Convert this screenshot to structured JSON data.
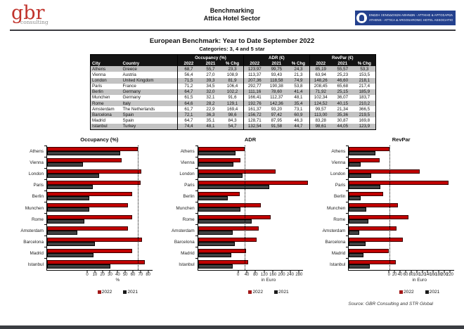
{
  "header": {
    "logo_text": "gbr",
    "logo_subtext": "consulting",
    "title_line1": "Benchmarking",
    "title_line2": "Attica Hotel Sector",
    "association_line1": "ΕΝΩΣΗ ΞΕΝΟΔΟΧΩΝ ΑΘΗΝΩΝ - ΑΤΤΙΚΗΣ & ΑΡΓΟΣΑΡΩΝΙΚΟΥ",
    "association_line2": "ATHENS - ATTICA & ARGOSARONIC HOTEL ASSOCIATION"
  },
  "report": {
    "title": "European Benchmark: Year to Date September 2022",
    "subtitle": "Categories: 3, 4 and 5 star"
  },
  "table": {
    "group_headers": [
      "Occupancy (%)",
      "ADR (€)",
      "RevPar (€)"
    ],
    "sub_headers": [
      "City",
      "Country",
      "2022",
      "2021",
      "% Chg",
      "2022",
      "2021",
      "% Chg",
      "2022",
      "2021",
      "% Chg"
    ],
    "rows": [
      [
        "Athens",
        "Greece",
        "68,7",
        "55,7",
        "23,3",
        "123,97",
        "99,75",
        "24,3",
        "85,19",
        "55,57",
        "53,3"
      ],
      [
        "Vienna",
        "Austria",
        "56,4",
        "27,0",
        "108,9",
        "113,37",
        "93,43",
        "21,3",
        "63,94",
        "25,23",
        "153,5"
      ],
      [
        "London",
        "United Kingdom",
        "71,5",
        "39,3",
        "81,9",
        "207,36",
        "118,58",
        "74,9",
        "148,26",
        "46,60",
        "218,1"
      ],
      [
        "Paris",
        "France",
        "71,2",
        "34,5",
        "106,4",
        "292,77",
        "190,38",
        "53,8",
        "208,45",
        "65,68",
        "217,4"
      ],
      [
        "Berlin",
        "Germany",
        "64,7",
        "32,0",
        "102,2",
        "111,16",
        "78,60",
        "41,4",
        "71,92",
        "25,15",
        "185,9"
      ],
      [
        "Munchen",
        "Germany",
        "61,5",
        "32,1",
        "91,6",
        "166,41",
        "112,37",
        "48,1",
        "102,34",
        "36,07",
        "183,7"
      ],
      [
        "Rome",
        "Italy",
        "64,6",
        "28,2",
        "129,1",
        "192,76",
        "142,36",
        "35,4",
        "124,52",
        "40,15",
        "210,2"
      ],
      [
        "Amsterdam",
        "The Netherlands",
        "61,7",
        "22,9",
        "169,4",
        "161,37",
        "93,20",
        "73,1",
        "99,57",
        "21,34",
        "366,5"
      ],
      [
        "Barcelona",
        "Spain",
        "72,1",
        "36,3",
        "98,6",
        "156,72",
        "97,42",
        "60,9",
        "113,00",
        "35,36",
        "219,5"
      ],
      [
        "Madrid",
        "Spain",
        "64,7",
        "35,1",
        "84,3",
        "128,71",
        "87,95",
        "46,3",
        "83,28",
        "30,87",
        "169,8"
      ],
      [
        "Istanbul",
        "Turkey",
        "74,4",
        "48,1",
        "54,7",
        "132,54",
        "91,58",
        "44,7",
        "98,61",
        "44,05",
        "123,9"
      ]
    ]
  },
  "chart_data": [
    {
      "type": "bar",
      "orientation": "horizontal",
      "title": "Occupancy (%)",
      "categories": [
        "Athens",
        "Vienna",
        "London",
        "Paris",
        "Berlin",
        "Munchen",
        "Rome",
        "Amsterdam",
        "Barcelona",
        "Madrid",
        "Istanbul"
      ],
      "series": [
        {
          "name": "2022",
          "values": [
            68.7,
            56.4,
            71.5,
            71.2,
            64.7,
            61.5,
            64.6,
            61.7,
            72.1,
            64.7,
            74.4
          ]
        },
        {
          "name": "2021",
          "values": [
            55.7,
            27.0,
            39.3,
            34.5,
            32.0,
            32.1,
            28.2,
            22.9,
            36.3,
            35.1,
            48.1
          ]
        }
      ],
      "xlabel": "%",
      "xlim": [
        0,
        80
      ],
      "xticks": [
        0,
        10,
        20,
        30,
        40,
        50,
        60,
        70,
        80
      ],
      "refline": 68.7,
      "legend_position": "bottom",
      "grid": false
    },
    {
      "type": "bar",
      "orientation": "horizontal",
      "title": "ADR",
      "categories": [
        "Athens",
        "Vienna",
        "London",
        "Paris",
        "Berlin",
        "Munchen",
        "Rome",
        "Amsterdam",
        "Barcelona",
        "Madrid",
        "Istanbul"
      ],
      "series": [
        {
          "name": "2022",
          "values": [
            123.97,
            113.37,
            207.36,
            292.77,
            111.16,
            166.41,
            192.76,
            161.37,
            156.72,
            128.71,
            132.54
          ]
        },
        {
          "name": "2021",
          "values": [
            99.75,
            93.43,
            118.58,
            190.38,
            78.6,
            112.37,
            142.36,
            93.2,
            97.42,
            87.95,
            91.58
          ]
        }
      ],
      "xlabel": "in Euro",
      "xlim": [
        0,
        280
      ],
      "xticks": [
        0,
        40,
        80,
        120,
        160,
        200,
        240,
        280
      ],
      "refline": 123.97,
      "legend_position": "bottom",
      "grid": false
    },
    {
      "type": "bar",
      "orientation": "horizontal",
      "title": "RevPar",
      "categories": [
        "Athens",
        "Vienna",
        "London",
        "Paris",
        "Berlin",
        "Munchen",
        "Rome",
        "Amsterdam",
        "Barcelona",
        "Madrid",
        "Istanbul"
      ],
      "series": [
        {
          "name": "2022",
          "values": [
            85.19,
            63.94,
            148.26,
            208.45,
            71.92,
            102.34,
            124.52,
            99.57,
            113.0,
            83.28,
            98.61
          ]
        },
        {
          "name": "2021",
          "values": [
            55.57,
            25.23,
            46.6,
            65.68,
            25.15,
            36.07,
            40.15,
            21.34,
            35.36,
            30.87,
            44.05
          ]
        }
      ],
      "xlabel": "in Euro",
      "xlim": [
        0,
        220
      ],
      "xticks": [
        0,
        20,
        40,
        60,
        80,
        100,
        120,
        140,
        160,
        180,
        200,
        220
      ],
      "refline": 85.19,
      "legend_position": "bottom",
      "grid": false
    }
  ],
  "footer": {
    "source": "Source: GBR Consulting and STR Global"
  },
  "colors": {
    "bar_2022": "#c00000",
    "bar_2021": "#404040",
    "table_header_bg": "#141414",
    "table_alt_row": "#c3c3c3",
    "association_navy": "#24418e",
    "gbr_red": "#c0322b",
    "bottom_bar": "#3a3d42"
  }
}
